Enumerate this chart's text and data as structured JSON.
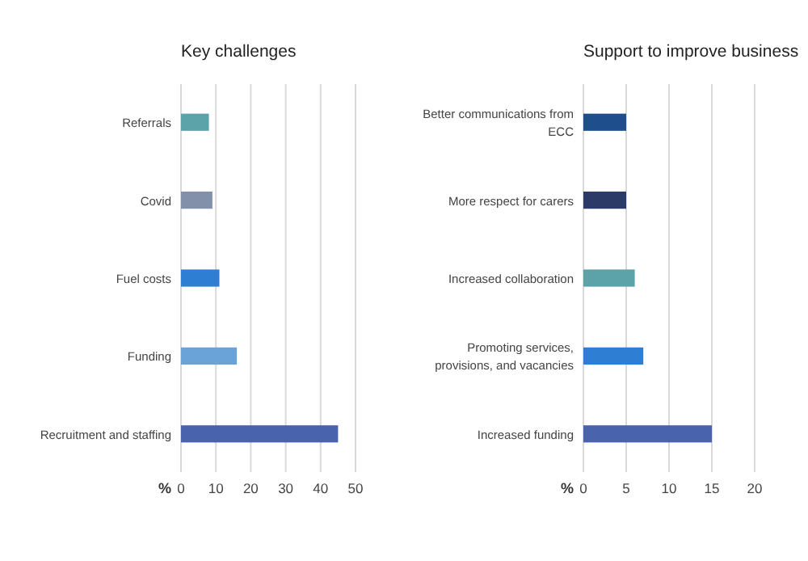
{
  "chart_data": [
    {
      "type": "bar",
      "orientation": "horizontal",
      "title": "Key challenges",
      "xlabel": "%",
      "categories": [
        "Referrals",
        "Covid",
        "Fuel costs",
        "Funding",
        "Recruitment and staffing"
      ],
      "values": [
        8,
        9,
        11,
        16,
        45
      ],
      "colors": [
        "#5ba3a8",
        "#8390aa",
        "#2e7fd4",
        "#6aa3d8",
        "#4a63ad"
      ],
      "xlim": [
        0,
        50
      ],
      "xticks": [
        0,
        10,
        20,
        30,
        40,
        50
      ],
      "grid": "x"
    },
    {
      "type": "bar",
      "orientation": "horizontal",
      "title": "Support to improve business",
      "xlabel": "%",
      "categories": [
        "Better communications from ECC",
        "More respect for carers",
        "Increased collaboration",
        "Promoting services, provisions, and vacancies",
        "Increased funding"
      ],
      "values": [
        5,
        5,
        6,
        7,
        15
      ],
      "colors": [
        "#1f4e8c",
        "#2b3a67",
        "#5ba3a8",
        "#2e7fd4",
        "#4a63ad"
      ],
      "xlim": [
        0,
        20
      ],
      "xticks": [
        0,
        5,
        10,
        15,
        20
      ],
      "grid": "x"
    }
  ]
}
